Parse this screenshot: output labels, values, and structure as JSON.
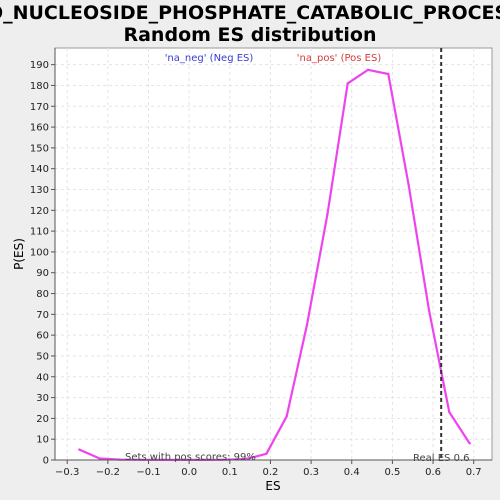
{
  "chart_data": {
    "type": "line",
    "title_line1": "GO_NUCLEOSIDE_PHOSPHATE_CATABOLIC_PROCESS:",
    "title_line2": "Random ES distribution",
    "xlabel": "ES",
    "ylabel": "P(ES)",
    "xlim": [
      -0.33,
      0.745
    ],
    "ylim": [
      0,
      198
    ],
    "xticks": [
      -0.3,
      -0.2,
      -0.1,
      0.0,
      0.1,
      0.2,
      0.3,
      0.4,
      0.5,
      0.6,
      0.7
    ],
    "xtick_labels": [
      "−0.3",
      "−0.2",
      "−0.1",
      "0.0",
      "0.1",
      "0.2",
      "0.3",
      "0.4",
      "0.5",
      "0.6",
      "0.7"
    ],
    "yticks": [
      0,
      10,
      20,
      30,
      40,
      50,
      60,
      70,
      80,
      90,
      100,
      110,
      120,
      130,
      140,
      150,
      160,
      170,
      180,
      190
    ],
    "grid": true,
    "legend": {
      "placement": "top",
      "entries": [
        {
          "label": "'na_neg' (Neg ES)",
          "color": "#3b3bd6"
        },
        {
          "label": "'na_pos' (Pos ES)",
          "color": "#d63b3b"
        }
      ]
    },
    "series": [
      {
        "color": "#ee44ee",
        "x": [
          -0.27,
          -0.22,
          -0.17,
          -0.12,
          -0.07,
          -0.02,
          0.03,
          0.08,
          0.14,
          0.19,
          0.24,
          0.29,
          0.34,
          0.39,
          0.44,
          0.49,
          0.54,
          0.59,
          0.64,
          0.69
        ],
        "y": [
          5,
          0.7,
          0.2,
          0.1,
          0.05,
          0.05,
          0.05,
          0.1,
          0.5,
          3,
          21,
          65,
          118,
          181,
          187.5,
          185.5,
          132,
          72,
          23,
          8
        ]
      }
    ],
    "real_es": {
      "value": 0.62,
      "label": "Real ES 0.6",
      "color": "#333333"
    },
    "annotation": "Sets with pos scores: 99%"
  }
}
